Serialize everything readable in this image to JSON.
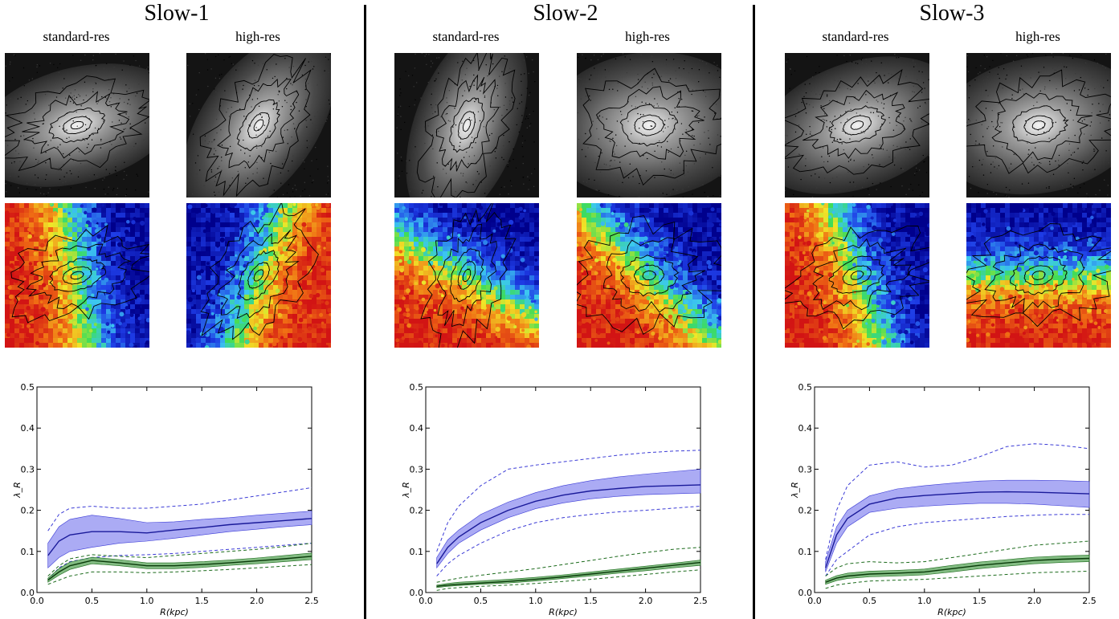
{
  "panels": [
    {
      "title": "Slow-1",
      "standard_label": "standard-res",
      "high_label": "high-res"
    },
    {
      "title": "Slow-2",
      "standard_label": "standard-res",
      "high_label": "high-res"
    },
    {
      "title": "Slow-3",
      "standard_label": "standard-res",
      "high_label": "high-res"
    }
  ],
  "colors": {
    "standard": "#3b3bd6",
    "standard_fill": "#8f8ff0",
    "high": "#1c6b1c",
    "high_fill": "#5aa55a",
    "divider": "#000000"
  },
  "chart_data": [
    {
      "type": "line",
      "xlabel": "R(kpc)",
      "ylabel": "λ_R",
      "xlim": [
        0.0,
        2.5
      ],
      "ylim": [
        0.0,
        0.5
      ],
      "xticks": [
        "0.0",
        "0.5",
        "1.0",
        "1.5",
        "2.0",
        "2.5"
      ],
      "yticks": [
        "0.0",
        "0.1",
        "0.2",
        "0.3",
        "0.4",
        "0.5"
      ],
      "x": [
        0.1,
        0.2,
        0.3,
        0.5,
        0.75,
        1.0,
        1.25,
        1.5,
        1.75,
        2.0,
        2.25,
        2.5
      ],
      "series": [
        {
          "key": "standard",
          "values": [
            0.09,
            0.125,
            0.14,
            0.148,
            0.148,
            0.145,
            0.152,
            0.158,
            0.165,
            0.17,
            0.175,
            0.18
          ],
          "lower": [
            0.06,
            0.085,
            0.1,
            0.11,
            0.12,
            0.125,
            0.132,
            0.14,
            0.148,
            0.154,
            0.16,
            0.165
          ],
          "upper": [
            0.12,
            0.16,
            0.178,
            0.188,
            0.18,
            0.17,
            0.172,
            0.178,
            0.182,
            0.188,
            0.193,
            0.198
          ],
          "dash_lower": [
            0.03,
            0.06,
            0.075,
            0.085,
            0.09,
            0.092,
            0.095,
            0.1,
            0.105,
            0.11,
            0.115,
            0.12
          ],
          "dash_upper": [
            0.15,
            0.19,
            0.205,
            0.21,
            0.205,
            0.205,
            0.21,
            0.215,
            0.225,
            0.235,
            0.245,
            0.255
          ]
        },
        {
          "key": "high",
          "values": [
            0.03,
            0.05,
            0.065,
            0.078,
            0.072,
            0.065,
            0.065,
            0.068,
            0.072,
            0.077,
            0.082,
            0.088
          ],
          "lower": [
            0.025,
            0.042,
            0.056,
            0.07,
            0.065,
            0.058,
            0.058,
            0.061,
            0.066,
            0.07,
            0.075,
            0.08
          ],
          "upper": [
            0.035,
            0.058,
            0.074,
            0.086,
            0.08,
            0.072,
            0.072,
            0.075,
            0.079,
            0.084,
            0.09,
            0.096
          ],
          "dash_lower": [
            0.02,
            0.03,
            0.04,
            0.05,
            0.05,
            0.048,
            0.05,
            0.053,
            0.056,
            0.06,
            0.064,
            0.068
          ],
          "dash_upper": [
            0.04,
            0.065,
            0.082,
            0.092,
            0.088,
            0.085,
            0.09,
            0.095,
            0.1,
            0.105,
            0.112,
            0.12
          ]
        }
      ]
    },
    {
      "type": "line",
      "xlabel": "R(kpc)",
      "ylabel": "λ_R",
      "xlim": [
        0.0,
        2.5
      ],
      "ylim": [
        0.0,
        0.5
      ],
      "xticks": [
        "0.0",
        "0.5",
        "1.0",
        "1.5",
        "2.0",
        "2.5"
      ],
      "yticks": [
        "0.0",
        "0.1",
        "0.2",
        "0.3",
        "0.4",
        "0.5"
      ],
      "x": [
        0.1,
        0.2,
        0.3,
        0.5,
        0.75,
        1.0,
        1.25,
        1.5,
        1.75,
        2.0,
        2.25,
        2.5
      ],
      "series": [
        {
          "key": "standard",
          "values": [
            0.07,
            0.11,
            0.135,
            0.17,
            0.2,
            0.222,
            0.237,
            0.247,
            0.253,
            0.258,
            0.26,
            0.262
          ],
          "lower": [
            0.06,
            0.095,
            0.12,
            0.152,
            0.182,
            0.204,
            0.218,
            0.228,
            0.234,
            0.238,
            0.24,
            0.242
          ],
          "upper": [
            0.085,
            0.128,
            0.152,
            0.19,
            0.22,
            0.243,
            0.26,
            0.272,
            0.281,
            0.288,
            0.294,
            0.3
          ],
          "dash_lower": [
            0.04,
            0.07,
            0.09,
            0.12,
            0.15,
            0.17,
            0.182,
            0.19,
            0.196,
            0.2,
            0.205,
            0.21
          ],
          "dash_upper": [
            0.1,
            0.17,
            0.21,
            0.26,
            0.3,
            0.31,
            0.318,
            0.326,
            0.334,
            0.34,
            0.344,
            0.346
          ]
        },
        {
          "key": "high",
          "values": [
            0.015,
            0.018,
            0.02,
            0.023,
            0.027,
            0.032,
            0.038,
            0.045,
            0.052,
            0.059,
            0.066,
            0.073
          ],
          "lower": [
            0.012,
            0.015,
            0.017,
            0.02,
            0.023,
            0.028,
            0.034,
            0.04,
            0.047,
            0.053,
            0.06,
            0.066
          ],
          "upper": [
            0.018,
            0.022,
            0.025,
            0.028,
            0.032,
            0.037,
            0.043,
            0.05,
            0.057,
            0.064,
            0.071,
            0.079
          ],
          "dash_lower": [
            0.005,
            0.01,
            0.012,
            0.015,
            0.018,
            0.022,
            0.027,
            0.032,
            0.038,
            0.044,
            0.05,
            0.055
          ],
          "dash_upper": [
            0.025,
            0.03,
            0.035,
            0.042,
            0.05,
            0.058,
            0.068,
            0.078,
            0.088,
            0.097,
            0.105,
            0.11
          ]
        }
      ]
    },
    {
      "type": "line",
      "xlabel": "R(kpc)",
      "ylabel": "λ_R",
      "xlim": [
        0.0,
        2.5
      ],
      "ylim": [
        0.0,
        0.5
      ],
      "xticks": [
        "0.0",
        "0.5",
        "1.0",
        "1.5",
        "2.0",
        "2.5"
      ],
      "yticks": [
        "0.0",
        "0.1",
        "0.2",
        "0.3",
        "0.4",
        "0.5"
      ],
      "x": [
        0.1,
        0.2,
        0.3,
        0.5,
        0.75,
        1.0,
        1.25,
        1.5,
        1.75,
        2.0,
        2.25,
        2.5
      ],
      "series": [
        {
          "key": "standard",
          "values": [
            0.06,
            0.14,
            0.18,
            0.215,
            0.23,
            0.236,
            0.24,
            0.244,
            0.245,
            0.244,
            0.242,
            0.24
          ],
          "lower": [
            0.05,
            0.12,
            0.16,
            0.195,
            0.205,
            0.21,
            0.214,
            0.217,
            0.217,
            0.215,
            0.211,
            0.207
          ],
          "upper": [
            0.075,
            0.16,
            0.2,
            0.235,
            0.252,
            0.26,
            0.266,
            0.271,
            0.273,
            0.273,
            0.272,
            0.27
          ],
          "dash_lower": [
            0.04,
            0.08,
            0.1,
            0.14,
            0.16,
            0.17,
            0.175,
            0.18,
            0.185,
            0.188,
            0.19,
            0.19
          ],
          "dash_upper": [
            0.08,
            0.2,
            0.26,
            0.31,
            0.318,
            0.305,
            0.31,
            0.33,
            0.355,
            0.362,
            0.358,
            0.35
          ]
        },
        {
          "key": "high",
          "values": [
            0.025,
            0.035,
            0.04,
            0.045,
            0.047,
            0.05,
            0.058,
            0.066,
            0.072,
            0.078,
            0.081,
            0.083
          ],
          "lower": [
            0.02,
            0.029,
            0.034,
            0.038,
            0.04,
            0.043,
            0.05,
            0.058,
            0.064,
            0.07,
            0.073,
            0.075
          ],
          "upper": [
            0.03,
            0.041,
            0.047,
            0.052,
            0.054,
            0.057,
            0.066,
            0.074,
            0.08,
            0.086,
            0.089,
            0.091
          ],
          "dash_lower": [
            0.01,
            0.018,
            0.022,
            0.028,
            0.03,
            0.032,
            0.036,
            0.04,
            0.044,
            0.048,
            0.05,
            0.052
          ],
          "dash_upper": [
            0.04,
            0.06,
            0.07,
            0.075,
            0.072,
            0.075,
            0.085,
            0.095,
            0.105,
            0.115,
            0.12,
            0.125
          ]
        }
      ]
    }
  ]
}
